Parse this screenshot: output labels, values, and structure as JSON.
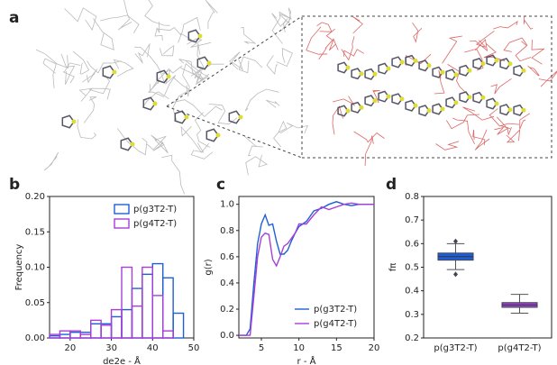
{
  "panel_labels": [
    "a",
    "b",
    "c",
    "d"
  ],
  "chart_data": [
    {
      "type": "histogram",
      "xlabel": "de2e - Å",
      "ylabel": "Frequency",
      "bins": [
        15,
        17.5,
        20,
        22.5,
        25,
        27.5,
        30,
        32.5,
        35,
        37.5,
        40,
        42.5,
        45,
        47.5
      ],
      "series": [
        {
          "name": "p(g3T2-T)",
          "color": "#1f5fd6",
          "values": [
            0.003,
            0.005,
            0.008,
            0.008,
            0.02,
            0.02,
            0.03,
            0.04,
            0.07,
            0.09,
            0.105,
            0.085,
            0.035
          ]
        },
        {
          "name": "p(g4T2-T)",
          "color": "#a63fd6",
          "values": [
            0.005,
            0.01,
            0.01,
            0.005,
            0.025,
            0.018,
            0.04,
            0.1,
            0.045,
            0.1,
            0.06,
            0.01,
            0
          ]
        }
      ],
      "xlim": [
        15,
        50
      ],
      "xticks": [
        20,
        30,
        40,
        50
      ],
      "ylim": [
        0,
        0.2
      ],
      "yticks": [
        {
          "value": 0,
          "label": "0.00"
        },
        {
          "value": 0.05,
          "label": "0.05"
        },
        {
          "value": 0.1,
          "label": "0.10"
        },
        {
          "value": 0.15,
          "label": "0.15"
        },
        {
          "value": 0.2,
          "label": "0.20"
        }
      ],
      "legend": "upper right"
    },
    {
      "type": "line",
      "xlabel": "r - Å",
      "ylabel": "g(r)",
      "x": [
        2,
        3,
        3.5,
        4,
        4.5,
        5,
        5.5,
        6,
        6.5,
        7,
        7.5,
        8,
        8.5,
        9,
        9.5,
        10,
        11,
        12,
        13,
        14,
        15,
        16,
        17,
        18,
        19,
        20
      ],
      "series": [
        {
          "name": "p(g3T2-T)",
          "color": "#1f5fd6",
          "values": [
            0,
            0,
            0.05,
            0.4,
            0.7,
            0.85,
            0.92,
            0.84,
            0.85,
            0.72,
            0.62,
            0.62,
            0.65,
            0.72,
            0.78,
            0.83,
            0.87,
            0.95,
            0.97,
            1.0,
            1.02,
            1.0,
            0.99,
            1.0,
            1.0,
            1.0
          ]
        },
        {
          "name": "p(g4T2-T)",
          "color": "#a63fd6",
          "values": [
            0,
            0,
            0,
            0.3,
            0.6,
            0.75,
            0.78,
            0.77,
            0.58,
            0.53,
            0.6,
            0.68,
            0.7,
            0.74,
            0.78,
            0.85,
            0.85,
            0.92,
            0.98,
            0.96,
            0.98,
            1.0,
            1.01,
            1.0,
            1.0,
            1.0
          ]
        }
      ],
      "xlim": [
        2,
        20
      ],
      "xticks": [
        5,
        10,
        15,
        20
      ],
      "ylim": [
        -0.02,
        1.06
      ],
      "yticks": [
        {
          "value": 0,
          "label": "0.0"
        },
        {
          "value": 0.2,
          "label": "0.2"
        },
        {
          "value": 0.4,
          "label": "0.4"
        },
        {
          "value": 0.6,
          "label": "0.6"
        },
        {
          "value": 0.8,
          "label": "0.8"
        },
        {
          "value": 1,
          "label": "1.0"
        }
      ],
      "legend": "lower right"
    },
    {
      "type": "box",
      "ylabel": "fπ",
      "categories": [
        "p(g3T2-T)",
        "p(g4T2-T)"
      ],
      "boxes": [
        {
          "color": "#1f5fd6",
          "whislo": 0.49,
          "q1": 0.53,
          "med": 0.545,
          "q3": 0.56,
          "whishi": 0.6,
          "fliers": [
            0.61,
            0.47
          ]
        },
        {
          "color": "#9a45c8",
          "whislo": 0.305,
          "q1": 0.33,
          "med": 0.34,
          "q3": 0.35,
          "whishi": 0.385,
          "fliers": []
        }
      ],
      "ylim": [
        0.2,
        0.8
      ],
      "yticks": [
        {
          "value": 0.2,
          "label": "0.2"
        },
        {
          "value": 0.3,
          "label": "0.3"
        },
        {
          "value": 0.4,
          "label": "0.4"
        },
        {
          "value": 0.5,
          "label": "0.5"
        },
        {
          "value": 0.6,
          "label": "0.6"
        },
        {
          "value": 0.7,
          "label": "0.7"
        },
        {
          "value": 0.8,
          "label": "0.8"
        }
      ]
    }
  ]
}
